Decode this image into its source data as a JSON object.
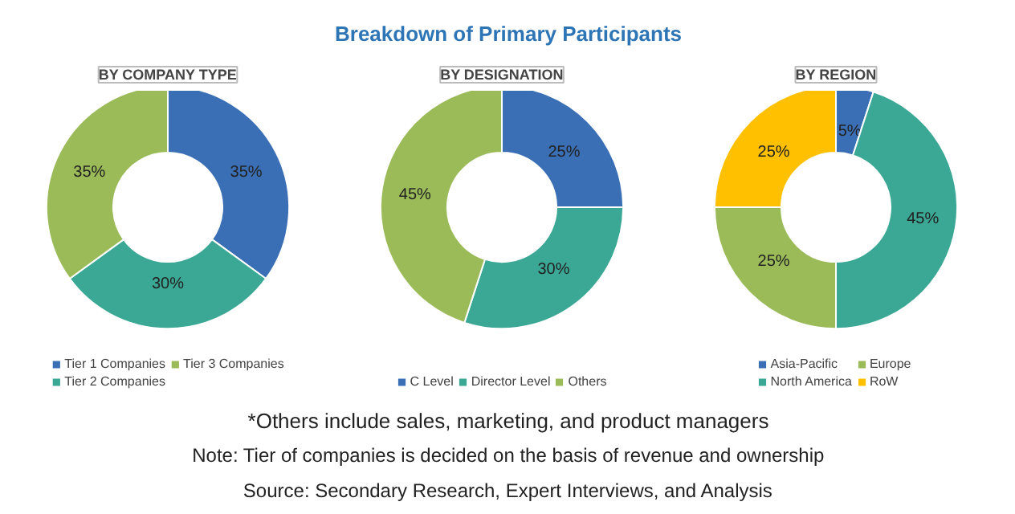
{
  "chart_data": [
    {
      "type": "other",
      "title": "Breakdown of Primary Participants",
      "annotations": [
        "*Others include sales, marketing, and product managers",
        "Note: Tier of companies is decided on the basis of revenue and ownership",
        "Source: Secondary Research, Expert Interviews, and Analysis"
      ]
    },
    {
      "type": "donut",
      "title": "BY COMPANY TYPE",
      "categories": [
        "Tier 1 Companies",
        "Tier 2 Companies",
        "Tier 3 Companies"
      ],
      "values": [
        35,
        30,
        35
      ],
      "colors": [
        "#3a6fb5",
        "#3aa895",
        "#9bbb59"
      ],
      "value_labels": [
        "35%",
        "30%",
        "35%"
      ],
      "legend": "bottom"
    },
    {
      "type": "donut",
      "title": "BY DESIGNATION",
      "categories": [
        "C Level",
        "Director Level",
        "Others"
      ],
      "values": [
        25,
        30,
        45
      ],
      "colors": [
        "#3a6fb5",
        "#3aa895",
        "#9bbb59"
      ],
      "value_labels": [
        "25%",
        "30%",
        "45%"
      ],
      "legend": "bottom"
    },
    {
      "type": "donut",
      "title": "BY REGION",
      "categories": [
        "Asia-Pacific",
        "North America",
        "Europe",
        "RoW"
      ],
      "values": [
        5,
        45,
        25,
        25
      ],
      "colors": [
        "#3a6fb5",
        "#3aa895",
        "#9bbb59",
        "#ffc000"
      ],
      "value_labels": [
        "5%",
        "45%",
        "25%",
        "25%"
      ],
      "legend": "bottom"
    }
  ]
}
